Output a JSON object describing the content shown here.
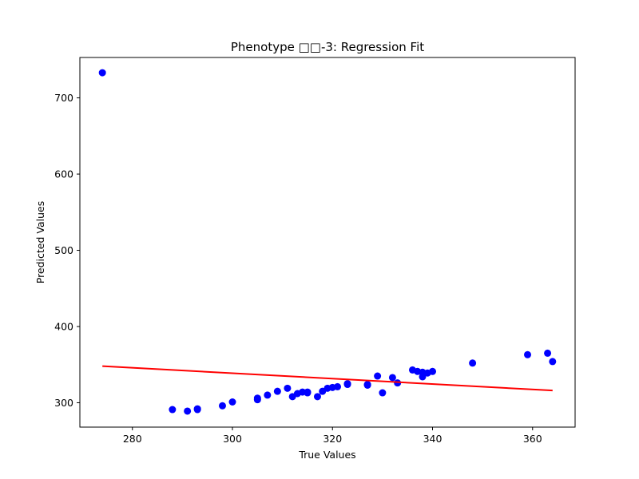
{
  "chart_data": {
    "type": "scatter",
    "title": "Phenotype □□-3: Regression Fit",
    "xlabel": "True Values",
    "ylabel": "Predicted Values",
    "xlim": [
      269.5,
      368.5
    ],
    "ylim": [
      268,
      753
    ],
    "xticks": [
      280,
      300,
      320,
      340,
      360
    ],
    "yticks": [
      300,
      400,
      500,
      600,
      700
    ],
    "grid": false,
    "point_color": "#0000ff",
    "line_color": "#ff0000",
    "points": [
      {
        "x": 274,
        "y": 733
      },
      {
        "x": 288,
        "y": 291
      },
      {
        "x": 291,
        "y": 289
      },
      {
        "x": 293,
        "y": 291
      },
      {
        "x": 293,
        "y": 292
      },
      {
        "x": 298,
        "y": 296
      },
      {
        "x": 300,
        "y": 301
      },
      {
        "x": 305,
        "y": 304
      },
      {
        "x": 305,
        "y": 306
      },
      {
        "x": 307,
        "y": 310
      },
      {
        "x": 309,
        "y": 315
      },
      {
        "x": 311,
        "y": 319
      },
      {
        "x": 312,
        "y": 308
      },
      {
        "x": 313,
        "y": 312
      },
      {
        "x": 314,
        "y": 314
      },
      {
        "x": 315,
        "y": 313
      },
      {
        "x": 315,
        "y": 314
      },
      {
        "x": 317,
        "y": 308
      },
      {
        "x": 318,
        "y": 315
      },
      {
        "x": 319,
        "y": 319
      },
      {
        "x": 320,
        "y": 320
      },
      {
        "x": 321,
        "y": 321
      },
      {
        "x": 323,
        "y": 324
      },
      {
        "x": 323,
        "y": 325
      },
      {
        "x": 327,
        "y": 323
      },
      {
        "x": 327,
        "y": 324
      },
      {
        "x": 329,
        "y": 335
      },
      {
        "x": 330,
        "y": 313
      },
      {
        "x": 332,
        "y": 333
      },
      {
        "x": 333,
        "y": 326
      },
      {
        "x": 336,
        "y": 343
      },
      {
        "x": 337,
        "y": 341
      },
      {
        "x": 338,
        "y": 340
      },
      {
        "x": 338,
        "y": 334
      },
      {
        "x": 339,
        "y": 339
      },
      {
        "x": 340,
        "y": 341
      },
      {
        "x": 348,
        "y": 352
      },
      {
        "x": 359,
        "y": 363
      },
      {
        "x": 363,
        "y": 365
      },
      {
        "x": 364,
        "y": 354
      }
    ],
    "fit_line": {
      "x": [
        274,
        364
      ],
      "y": [
        348,
        316
      ]
    }
  }
}
